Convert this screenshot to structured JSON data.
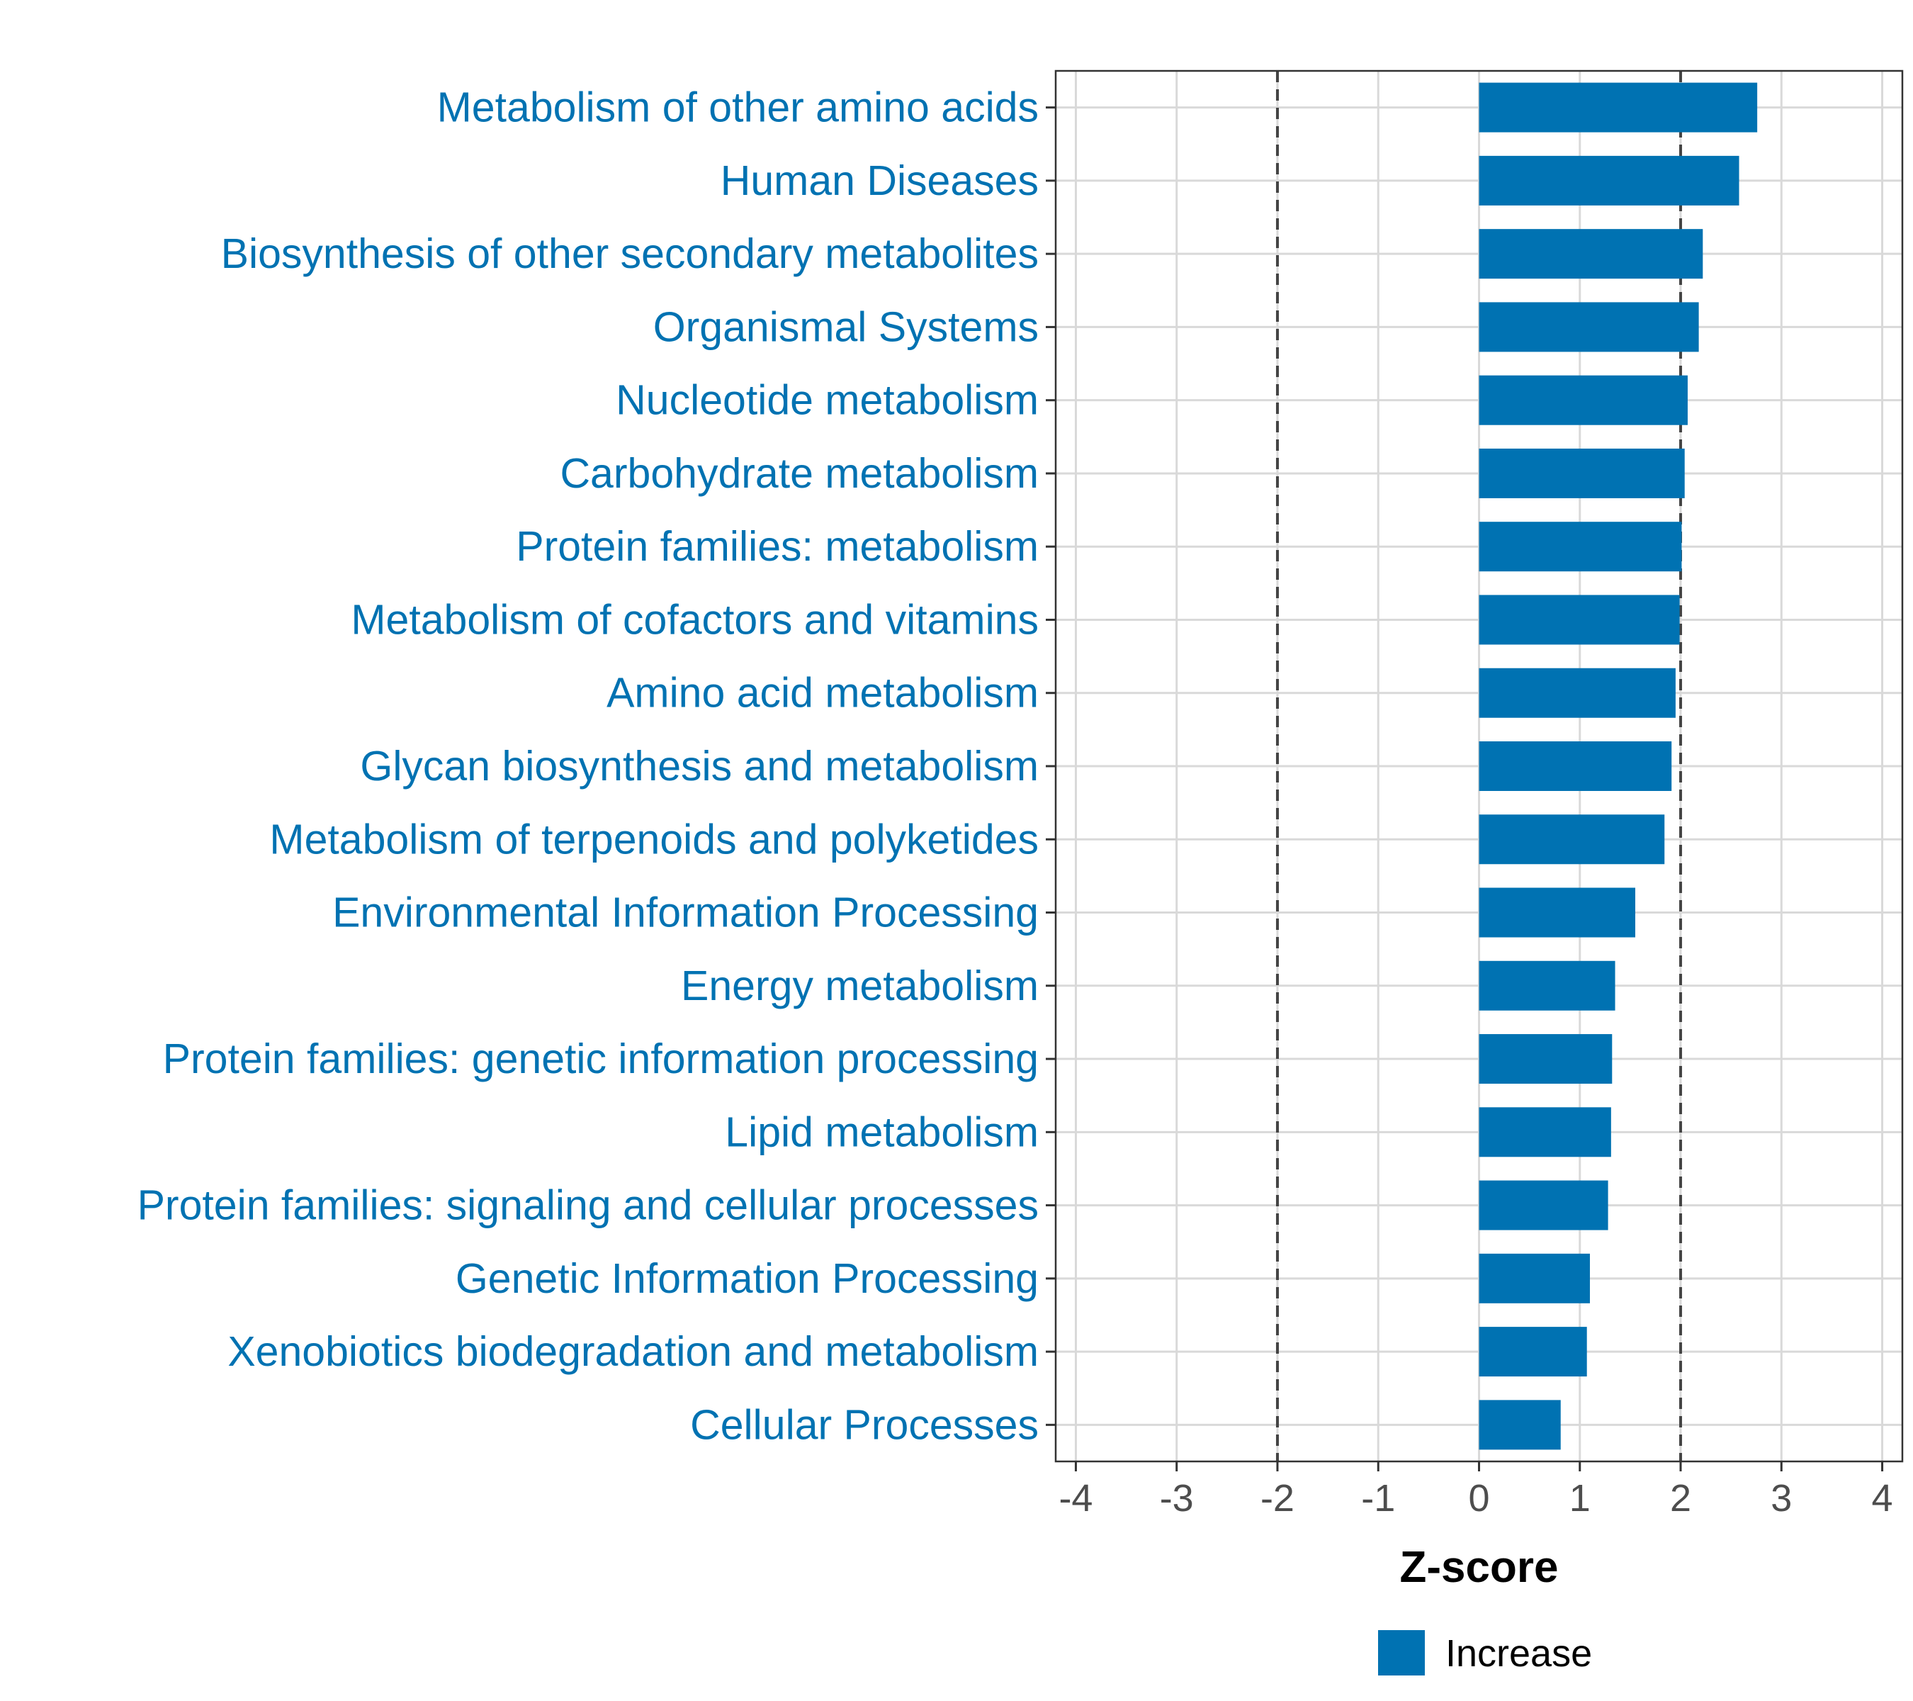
{
  "chart_data": {
    "type": "bar",
    "orientation": "horizontal",
    "title": "",
    "xlabel": "Z-score",
    "ylabel": "",
    "xlim": [
      -4.2,
      4.2
    ],
    "x_ticks": [
      -4,
      -3,
      -2,
      -1,
      0,
      1,
      2,
      3,
      4
    ],
    "x_tick_labels": [
      "-4",
      "-3",
      "-2",
      "-1",
      "0",
      "1",
      "2",
      "3",
      "4"
    ],
    "reference_lines": [
      -2,
      2
    ],
    "grid": true,
    "legend": {
      "position": "bottom",
      "entries": [
        {
          "label": "Increase",
          "color": "#0072B2"
        }
      ]
    },
    "categories": [
      "Metabolism of other amino acids",
      "Human Diseases",
      "Biosynthesis of other secondary metabolites",
      "Organismal Systems",
      "Nucleotide metabolism",
      "Carbohydrate metabolism",
      "Protein families: metabolism",
      "Metabolism of cofactors and vitamins",
      "Amino acid metabolism",
      "Glycan biosynthesis and metabolism",
      "Metabolism of terpenoids and polyketides",
      "Environmental Information Processing",
      "Energy metabolism",
      "Protein families: genetic information processing",
      "Lipid metabolism",
      "Protein families: signaling and cellular processes",
      "Genetic Information Processing",
      "Xenobiotics biodegradation and metabolism",
      "Cellular Processes"
    ],
    "values": [
      2.76,
      2.58,
      2.22,
      2.18,
      2.07,
      2.04,
      2.01,
      1.99,
      1.95,
      1.91,
      1.84,
      1.55,
      1.35,
      1.32,
      1.31,
      1.28,
      1.1,
      1.07,
      0.81
    ],
    "bar_color": "#0072B2",
    "label_color": "#0072B2"
  }
}
